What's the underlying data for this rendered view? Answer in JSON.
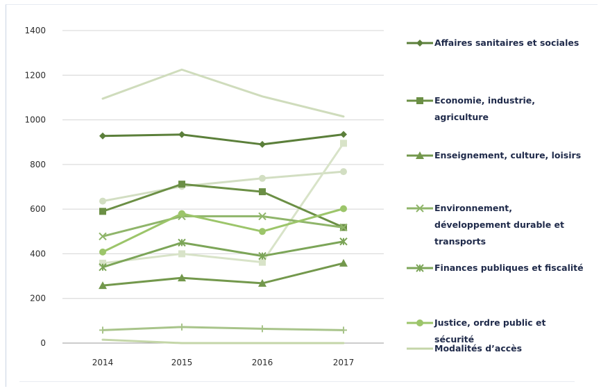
{
  "chart_data": {
    "type": "line",
    "title": "",
    "xlabel": "",
    "ylabel": "",
    "x": [
      "2014",
      "2015",
      "2016",
      "2017"
    ],
    "ylim": [
      0,
      1400
    ],
    "yticks": [
      0,
      200,
      400,
      600,
      800,
      1000,
      1200,
      1400
    ],
    "grid": "horizontal",
    "legend_position": "right",
    "series": [
      {
        "name": "Affaires sanitaires et sociales",
        "color": "#5b7f3a",
        "marker": "diamond",
        "values": [
          928,
          934,
          890,
          935
        ]
      },
      {
        "name": "Economie, industrie, agriculture",
        "color": "#6b8f45",
        "marker": "square",
        "values": [
          590,
          712,
          678,
          518
        ]
      },
      {
        "name": "Enseignement, culture, loisirs",
        "color": "#73984c",
        "marker": "triangle",
        "values": [
          258,
          292,
          268,
          358
        ]
      },
      {
        "name": "Environnement, développement durable et transports",
        "color": "#8fb56a",
        "marker": "x",
        "values": [
          478,
          568,
          568,
          518
        ]
      },
      {
        "name": "Finances publiques et fiscalité",
        "color": "#7ca558",
        "marker": "star",
        "values": [
          340,
          450,
          390,
          455
        ]
      },
      {
        "name": "Justice, ordre public et sécurité",
        "color": "#9cc56a",
        "marker": "circle",
        "values": [
          408,
          580,
          500,
          602
        ]
      },
      {
        "name": "Modalités d'accès",
        "color": "#c4d6a8",
        "marker": "none",
        "values": [
          15,
          0,
          0,
          0
        ]
      },
      {
        "name": "",
        "color": "#a8c48a",
        "marker": "plus",
        "values": [
          58,
          72,
          64,
          58
        ]
      },
      {
        "name": "",
        "color": "#cfdcbc",
        "marker": "none",
        "values": [
          1095,
          1225,
          1105,
          1015
        ]
      },
      {
        "name": "",
        "color": "#d2dec2",
        "marker": "circle",
        "values": [
          636,
          702,
          738,
          768
        ]
      },
      {
        "name": "",
        "color": "#d8e3c8",
        "marker": "square",
        "values": [
          358,
          400,
          362,
          895
        ]
      }
    ]
  }
}
